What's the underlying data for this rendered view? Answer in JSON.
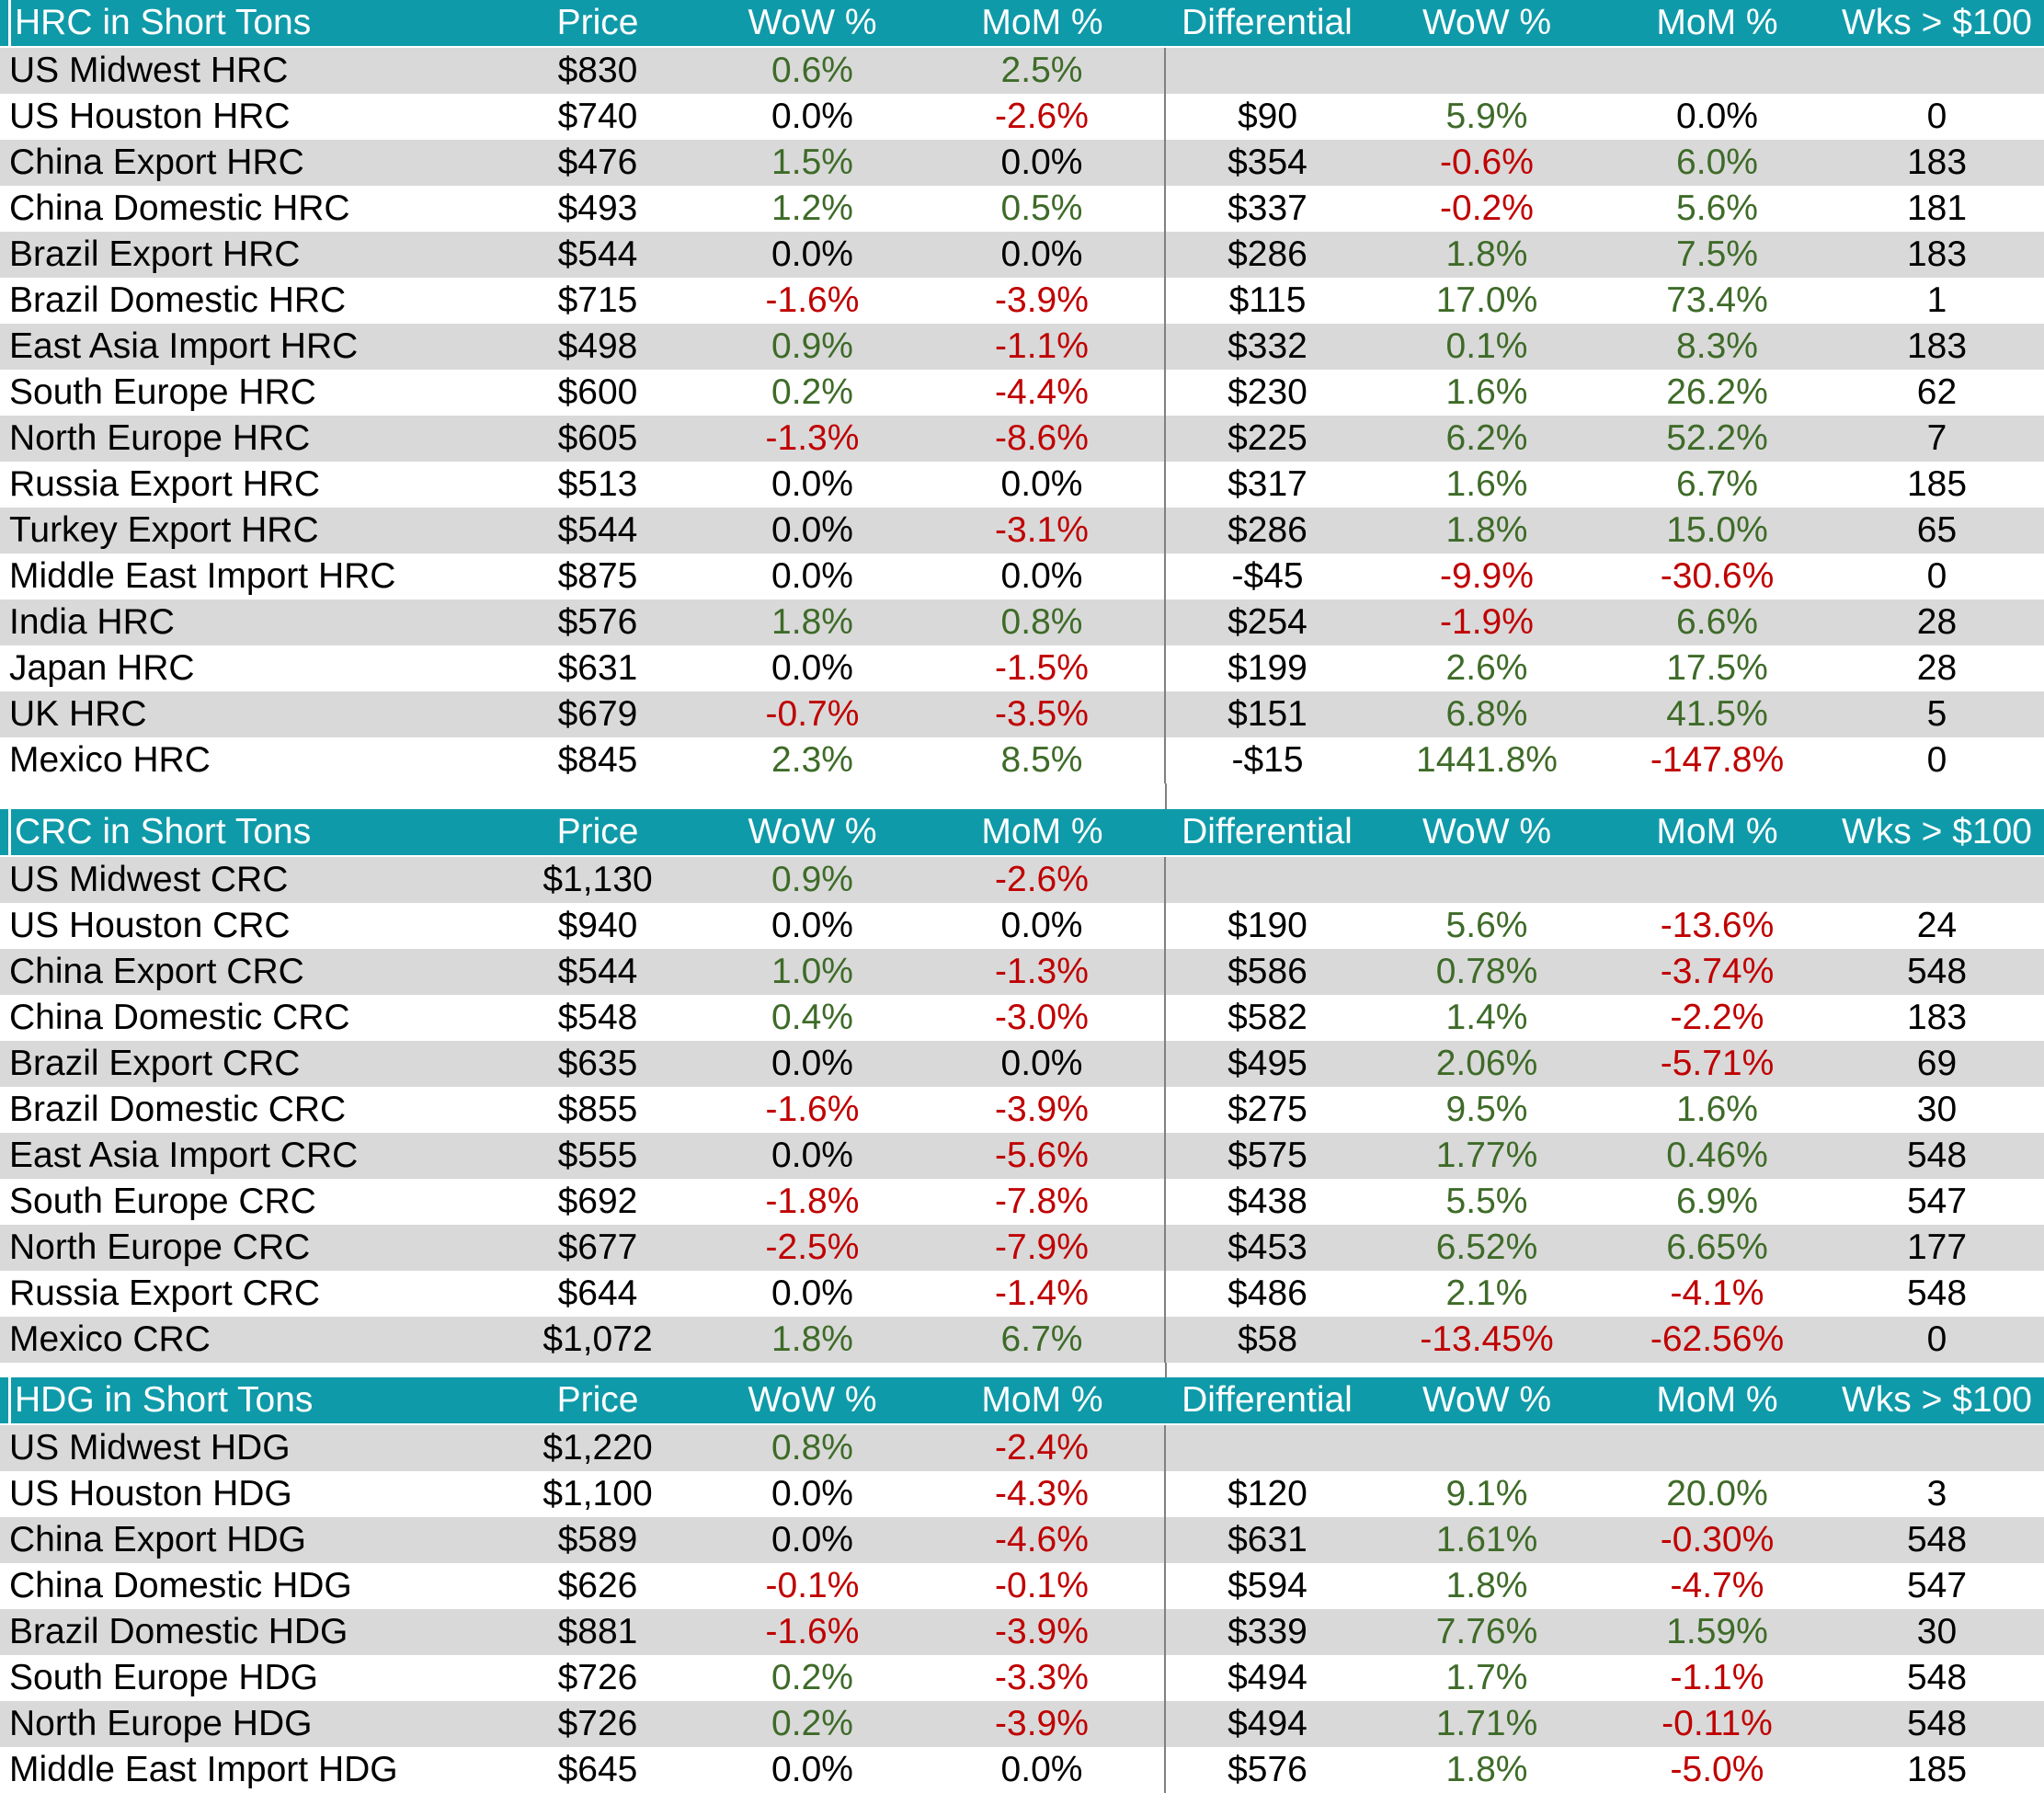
{
  "palette": {
    "header_bg": "#0F9AA9",
    "header_text": "#FFFFFF",
    "row_bg": "#FFFFFF",
    "row_alt_bg": "#D9D9D9",
    "positive": "#3E6B28",
    "negative": "#C00000",
    "neutral": "#000000",
    "divider": "#808080"
  },
  "columns": [
    "Price",
    "WoW %",
    "MoM %",
    "Differential",
    "WoW %",
    "MoM %",
    "Wks > $100"
  ],
  "sections": [
    {
      "title": "HRC in Short Tons",
      "rows": [
        {
          "name": "US Midwest HRC",
          "price": "$830",
          "wow": "0.6%",
          "mom": "2.5%",
          "diff": "",
          "dwow": "",
          "dmom": "",
          "wks": ""
        },
        {
          "name": "US Houston HRC",
          "price": "$740",
          "wow": "0.0%",
          "mom": "-2.6%",
          "diff": "$90",
          "dwow": "5.9%",
          "dmom": "0.0%",
          "wks": "0"
        },
        {
          "name": "China Export HRC",
          "price": "$476",
          "wow": "1.5%",
          "mom": "0.0%",
          "diff": "$354",
          "dwow": "-0.6%",
          "dmom": "6.0%",
          "wks": "183"
        },
        {
          "name": "China Domestic HRC",
          "price": "$493",
          "wow": "1.2%",
          "mom": "0.5%",
          "diff": "$337",
          "dwow": "-0.2%",
          "dmom": "5.6%",
          "wks": "181"
        },
        {
          "name": "Brazil Export HRC",
          "price": "$544",
          "wow": "0.0%",
          "mom": "0.0%",
          "diff": "$286",
          "dwow": "1.8%",
          "dmom": "7.5%",
          "wks": "183"
        },
        {
          "name": "Brazil Domestic HRC",
          "price": "$715",
          "wow": "-1.6%",
          "mom": "-3.9%",
          "diff": "$115",
          "dwow": "17.0%",
          "dmom": "73.4%",
          "wks": "1"
        },
        {
          "name": "East Asia Import HRC",
          "price": "$498",
          "wow": "0.9%",
          "mom": "-1.1%",
          "diff": "$332",
          "dwow": "0.1%",
          "dmom": "8.3%",
          "wks": "183"
        },
        {
          "name": "South Europe HRC",
          "price": "$600",
          "wow": "0.2%",
          "mom": "-4.4%",
          "diff": "$230",
          "dwow": "1.6%",
          "dmom": "26.2%",
          "wks": "62"
        },
        {
          "name": "North Europe HRC",
          "price": "$605",
          "wow": "-1.3%",
          "mom": "-8.6%",
          "diff": "$225",
          "dwow": "6.2%",
          "dmom": "52.2%",
          "wks": "7"
        },
        {
          "name": "Russia Export HRC",
          "price": "$513",
          "wow": "0.0%",
          "mom": "0.0%",
          "diff": "$317",
          "dwow": "1.6%",
          "dmom": "6.7%",
          "wks": "185"
        },
        {
          "name": "Turkey Export HRC",
          "price": "$544",
          "wow": "0.0%",
          "mom": "-3.1%",
          "diff": "$286",
          "dwow": "1.8%",
          "dmom": "15.0%",
          "wks": "65"
        },
        {
          "name": "Middle East Import HRC",
          "price": "$875",
          "wow": "0.0%",
          "mom": "0.0%",
          "diff": "-$45",
          "dwow": "-9.9%",
          "dmom": "-30.6%",
          "wks": "0"
        },
        {
          "name": "India HRC",
          "price": "$576",
          "wow": "1.8%",
          "mom": "0.8%",
          "diff": "$254",
          "dwow": "-1.9%",
          "dmom": "6.6%",
          "wks": "28"
        },
        {
          "name": "Japan HRC",
          "price": "$631",
          "wow": "0.0%",
          "mom": "-1.5%",
          "diff": "$199",
          "dwow": "2.6%",
          "dmom": "17.5%",
          "wks": "28"
        },
        {
          "name": "UK HRC",
          "price": "$679",
          "wow": "-0.7%",
          "mom": "-3.5%",
          "diff": "$151",
          "dwow": "6.8%",
          "dmom": "41.5%",
          "wks": "5"
        },
        {
          "name": "Mexico HRC",
          "price": "$845",
          "wow": "2.3%",
          "mom": "8.5%",
          "diff": "-$15",
          "dwow": "1441.8%",
          "dmom": "-147.8%",
          "wks": "0"
        }
      ]
    },
    {
      "title": "CRC in Short Tons",
      "rows": [
        {
          "name": "US Midwest CRC",
          "price": "$1,130",
          "wow": "0.9%",
          "mom": "-2.6%",
          "diff": "",
          "dwow": "",
          "dmom": "",
          "wks": ""
        },
        {
          "name": "US Houston CRC",
          "price": "$940",
          "wow": "0.0%",
          "mom": "0.0%",
          "diff": "$190",
          "dwow": "5.6%",
          "dmom": "-13.6%",
          "wks": "24"
        },
        {
          "name": "China Export CRC",
          "price": "$544",
          "wow": "1.0%",
          "mom": "-1.3%",
          "diff": "$586",
          "dwow": "0.78%",
          "dmom": "-3.74%",
          "wks": "548"
        },
        {
          "name": "China Domestic CRC",
          "price": "$548",
          "wow": "0.4%",
          "mom": "-3.0%",
          "diff": "$582",
          "dwow": "1.4%",
          "dmom": "-2.2%",
          "wks": "183"
        },
        {
          "name": "Brazil Export CRC",
          "price": "$635",
          "wow": "0.0%",
          "mom": "0.0%",
          "diff": "$495",
          "dwow": "2.06%",
          "dmom": "-5.71%",
          "wks": "69"
        },
        {
          "name": "Brazil Domestic CRC",
          "price": "$855",
          "wow": "-1.6%",
          "mom": "-3.9%",
          "diff": "$275",
          "dwow": "9.5%",
          "dmom": "1.6%",
          "wks": "30"
        },
        {
          "name": "East Asia Import CRC",
          "price": "$555",
          "wow": "0.0%",
          "mom": "-5.6%",
          "diff": "$575",
          "dwow": "1.77%",
          "dmom": "0.46%",
          "wks": "548"
        },
        {
          "name": "South Europe CRC",
          "price": "$692",
          "wow": "-1.8%",
          "mom": "-7.8%",
          "diff": "$438",
          "dwow": "5.5%",
          "dmom": "6.9%",
          "wks": "547"
        },
        {
          "name": "North Europe CRC",
          "price": "$677",
          "wow": "-2.5%",
          "mom": "-7.9%",
          "diff": "$453",
          "dwow": "6.52%",
          "dmom": "6.65%",
          "wks": "177"
        },
        {
          "name": "Russia Export CRC",
          "price": "$644",
          "wow": "0.0%",
          "mom": "-1.4%",
          "diff": "$486",
          "dwow": "2.1%",
          "dmom": "-4.1%",
          "wks": "548"
        },
        {
          "name": "Mexico CRC",
          "price": "$1,072",
          "wow": "1.8%",
          "mom": "6.7%",
          "diff": "$58",
          "dwow": "-13.45%",
          "dmom": "-62.56%",
          "wks": "0"
        }
      ]
    },
    {
      "title": "HDG in Short Tons",
      "rows": [
        {
          "name": "US Midwest HDG",
          "price": "$1,220",
          "wow": "0.8%",
          "mom": "-2.4%",
          "diff": "",
          "dwow": "",
          "dmom": "",
          "wks": ""
        },
        {
          "name": "US Houston HDG",
          "price": "$1,100",
          "wow": "0.0%",
          "mom": "-4.3%",
          "diff": "$120",
          "dwow": "9.1%",
          "dmom": "20.0%",
          "wks": "3"
        },
        {
          "name": "China Export HDG",
          "price": "$589",
          "wow": "0.0%",
          "mom": "-4.6%",
          "diff": "$631",
          "dwow": "1.61%",
          "dmom": "-0.30%",
          "wks": "548"
        },
        {
          "name": "China Domestic HDG",
          "price": "$626",
          "wow": "-0.1%",
          "mom": "-0.1%",
          "diff": "$594",
          "dwow": "1.8%",
          "dmom": "-4.7%",
          "wks": "547"
        },
        {
          "name": "Brazil Domestic HDG",
          "price": "$881",
          "wow": "-1.6%",
          "mom": "-3.9%",
          "diff": "$339",
          "dwow": "7.76%",
          "dmom": "1.59%",
          "wks": "30"
        },
        {
          "name": "South Europe HDG",
          "price": "$726",
          "wow": "0.2%",
          "mom": "-3.3%",
          "diff": "$494",
          "dwow": "1.7%",
          "dmom": "-1.1%",
          "wks": "548"
        },
        {
          "name": "North Europe HDG",
          "price": "$726",
          "wow": "0.2%",
          "mom": "-3.9%",
          "diff": "$494",
          "dwow": "1.71%",
          "dmom": "-0.11%",
          "wks": "548"
        },
        {
          "name": "Middle East Import HDG",
          "price": "$645",
          "wow": "0.0%",
          "mom": "0.0%",
          "diff": "$576",
          "dwow": "1.8%",
          "dmom": "-5.0%",
          "wks": "185"
        }
      ]
    }
  ]
}
